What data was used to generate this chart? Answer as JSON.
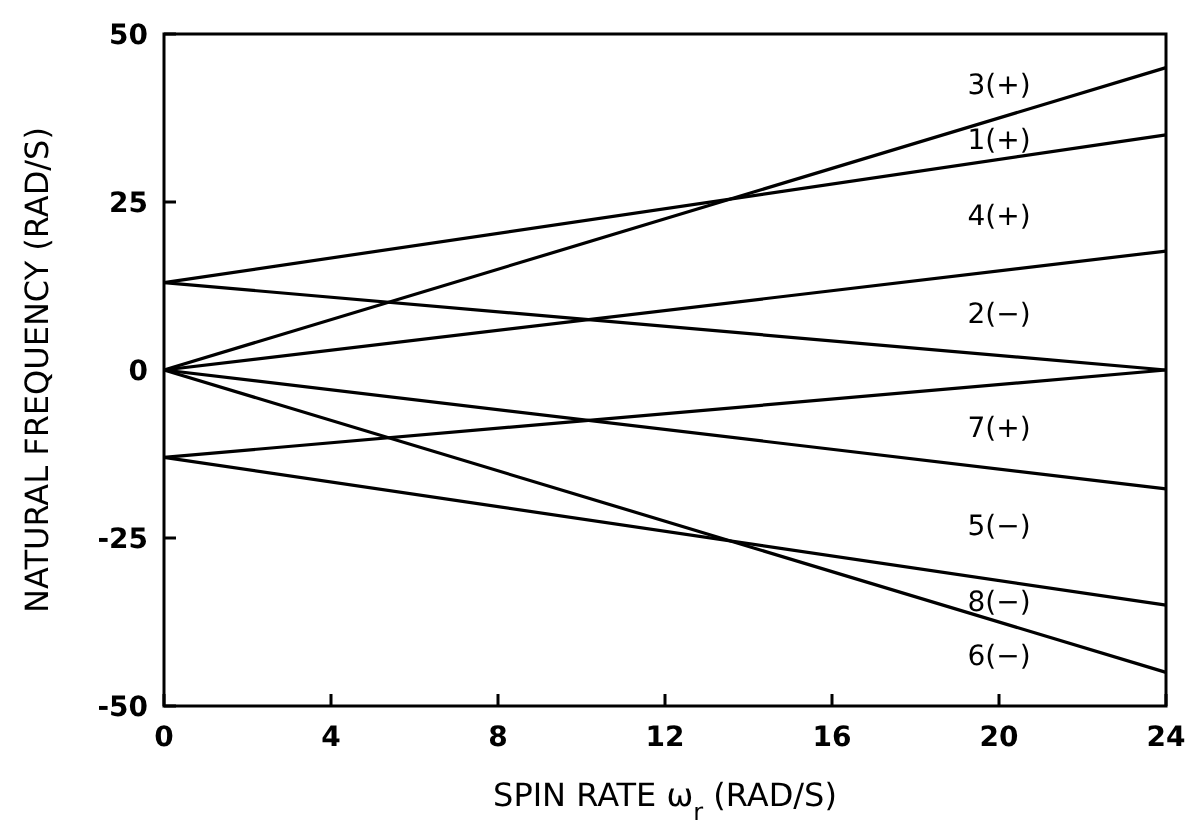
{
  "chart_data": {
    "type": "line",
    "xlabel": "SPIN RATE ω$_{r}$ (RAD/S)",
    "ylabel": "NATURAL FREQUENCY (RAD/S)",
    "xlim": [
      0,
      24
    ],
    "ylim": [
      -50,
      50
    ],
    "xticks": [
      0,
      4,
      8,
      12,
      16,
      20,
      24
    ],
    "yticks": [
      50,
      25,
      0,
      -25,
      -50
    ],
    "grid": false,
    "marker": "none",
    "line_style": "solid",
    "x": [
      0,
      24
    ],
    "series": [
      {
        "name": "1(+)",
        "color": "#000000",
        "values": [
          13,
          35
        ]
      },
      {
        "name": "2(−)",
        "color": "#000000",
        "values": [
          13,
          0
        ]
      },
      {
        "name": "3(+)",
        "color": "#000000",
        "values": [
          0,
          45
        ]
      },
      {
        "name": "4(+)",
        "color": "#000000",
        "values": [
          0,
          17.7
        ]
      },
      {
        "name": "5(−)",
        "color": "#000000",
        "values": [
          0,
          -17.7
        ]
      },
      {
        "name": "6(−)",
        "color": "#000000",
        "values": [
          0,
          -45
        ]
      },
      {
        "name": "7(+)",
        "color": "#000000",
        "values": [
          -13,
          0
        ]
      },
      {
        "name": "8(−)",
        "color": "#000000",
        "values": [
          -13,
          -35
        ]
      }
    ]
  }
}
